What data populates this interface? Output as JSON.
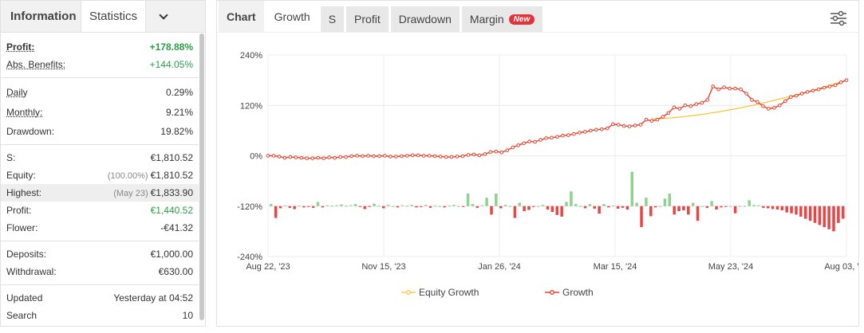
{
  "left_tabs": {
    "info": "Information",
    "stats": "Statistics"
  },
  "stats": {
    "profit": {
      "label": "Profit:",
      "value": "+178.88%"
    },
    "abs_benefits": {
      "label": "Abs. Benefits:",
      "value": "+144.05%"
    },
    "daily": {
      "label": "Daily",
      "value": "0.29%"
    },
    "monthly": {
      "label": "Monthly:",
      "value": "9.21%"
    },
    "drawdown": {
      "label": "Drawdown:",
      "value": "19.82%"
    },
    "s": {
      "label": "S:",
      "value": "€1,810.52"
    },
    "equity": {
      "label": "Equity:",
      "sub": "(100.00%)",
      "value": "€1,810.52"
    },
    "highest": {
      "label": "Highest:",
      "sub": "(May 23)",
      "value": "€1,833.90"
    },
    "profit2": {
      "label": "Profit:",
      "value": "€1,440.52"
    },
    "flower": {
      "label": "Flower:",
      "value": "-€41.32"
    },
    "deposits": {
      "label": "Deposits:",
      "value": "€1,000.00"
    },
    "withdrawal": {
      "label": "Withdrawal:",
      "value": "€630.00"
    },
    "updated": {
      "label": "Updated",
      "value": "Yesterday at 04:52"
    },
    "search": {
      "label": "Search",
      "value": "10"
    }
  },
  "chart_tabs": {
    "chart": "Chart",
    "growth": "Growth",
    "s": "S",
    "profit": "Profit",
    "drawdown": "Drawdown",
    "margin": "Margin",
    "new_badge": "New"
  },
  "icons": {
    "dropdown": "chevron-down-icon",
    "settings": "sliders-icon"
  },
  "colors": {
    "growth": "#e8412c",
    "equity": "#f5c432",
    "pos_bar": "#8fd18f",
    "neg_bar": "#e84545"
  },
  "chart_data": {
    "type": "line",
    "yticks": [
      "240%",
      "120%",
      "0%",
      "-120%",
      "-240%"
    ],
    "ylim": [
      -240,
      240
    ],
    "xticks": [
      "Aug 22, '23",
      "Nov 15, '23",
      "Jan 26, '24",
      "Mar 15, '24",
      "May 23, '24",
      "Aug 03, '24"
    ],
    "legend": [
      "Equity Growth",
      "Growth"
    ],
    "growth": [
      0,
      0,
      -2,
      -5,
      -3,
      -4,
      -5,
      -6,
      -6,
      -5,
      -6,
      -4,
      -5,
      -3,
      -3,
      -1,
      0,
      -1,
      0,
      -1,
      -1,
      0,
      -2,
      -2,
      -1,
      0,
      1,
      1,
      0,
      0,
      -1,
      -2,
      -3,
      -3,
      -2,
      -1,
      2,
      3,
      1,
      4,
      9,
      10,
      8,
      13,
      20,
      25,
      30,
      34,
      33,
      38,
      42,
      43,
      45,
      48,
      49,
      52,
      55,
      57,
      60,
      62,
      63,
      65,
      75,
      74,
      71,
      70,
      72,
      74,
      86,
      83,
      86,
      93,
      102,
      115,
      112,
      120,
      118,
      123,
      126,
      133,
      165,
      158,
      163,
      160,
      160,
      158,
      148,
      133,
      128,
      118,
      112,
      114,
      120,
      130,
      140,
      143,
      148,
      152,
      155,
      158,
      162,
      165,
      168,
      175,
      180
    ],
    "bars": [
      5,
      -28,
      -5,
      2,
      -4,
      -7,
      1,
      -3,
      -1,
      -4,
      10,
      -3,
      2,
      1,
      2,
      4,
      1,
      2,
      5,
      -2,
      -7,
      -2,
      6,
      1,
      -5,
      3,
      0,
      -3,
      2,
      1,
      3,
      -3,
      -2,
      3,
      -4,
      1,
      0,
      -3,
      1,
      3,
      0,
      -2,
      30,
      5,
      -4,
      2,
      20,
      -20,
      30,
      -5,
      3,
      0,
      -28,
      8,
      -12,
      -9,
      -2,
      0,
      3,
      -8,
      -14,
      -21,
      -25,
      10,
      35,
      5,
      0,
      -5,
      5,
      -6,
      -18,
      5,
      -3,
      1,
      -6,
      -4,
      -8,
      82,
      8,
      -50,
      20,
      -24,
      -3,
      0,
      18,
      30,
      -20,
      -12,
      -10,
      -20,
      8,
      -35,
      0,
      -4,
      12,
      -8,
      -3,
      -1,
      0,
      -17,
      0,
      0,
      14,
      3,
      2,
      -4,
      -5,
      -7,
      -8,
      -10,
      -15,
      -17,
      -20,
      -25,
      -30,
      -35,
      -40,
      -45,
      -50,
      -55,
      -60,
      -40,
      -30
    ]
  }
}
